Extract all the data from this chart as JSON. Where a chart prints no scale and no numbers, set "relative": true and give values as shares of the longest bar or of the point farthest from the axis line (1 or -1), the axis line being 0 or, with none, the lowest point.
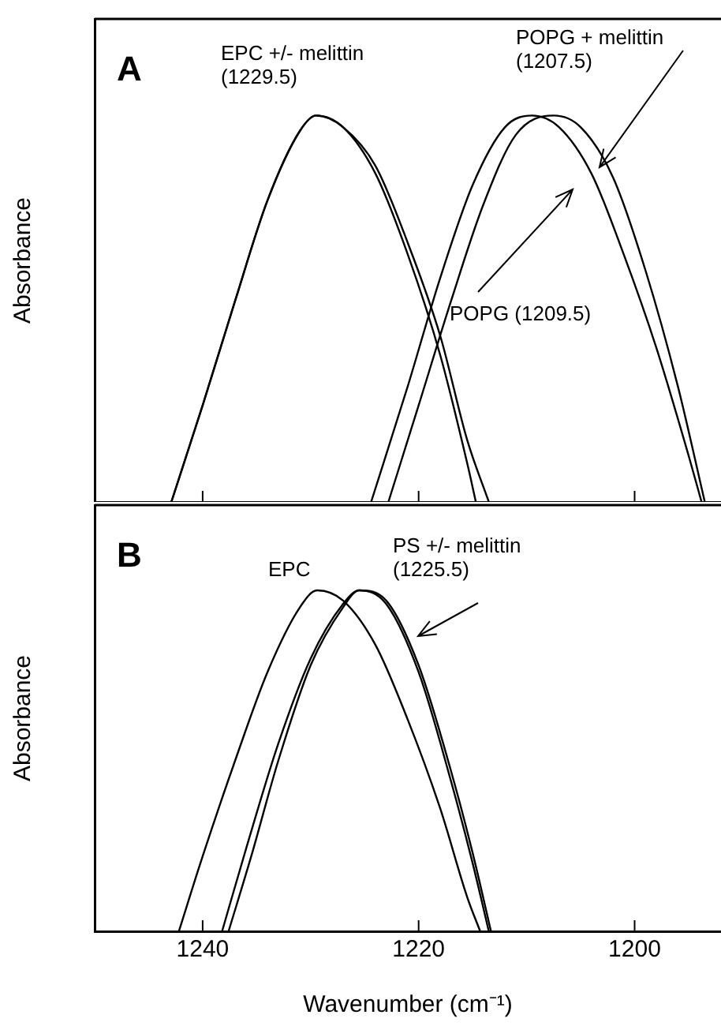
{
  "chart_data": [
    {
      "type": "line",
      "title": "A",
      "ylabel": "Absorbance",
      "relative": true,
      "xlim": [
        1250,
        1192
      ],
      "xticks": [
        {
          "value": 1240,
          "label": null
        },
        {
          "value": 1220,
          "label": null
        },
        {
          "value": 1200,
          "label": null
        }
      ],
      "tick_labels": false,
      "grid": false,
      "legend": false,
      "marker": "none",
      "line_style": "solid",
      "annotations": [
        "EPC +/- melittin\n(1229.5)",
        "POPG + melittin\n(1207.5)",
        "POPG (1209.5)"
      ],
      "series": [
        {
          "color": "#000000",
          "x": [
            1242.9,
            1240,
            1237,
            1234,
            1231,
            1229.5,
            1227,
            1224,
            1221,
            1218,
            1215.5,
            1214.7
          ],
          "values": [
            0,
            0.25,
            0.52,
            0.78,
            0.96,
            1,
            0.97,
            0.85,
            0.64,
            0.38,
            0.1,
            0
          ]
        },
        {
          "color": "#000000",
          "x": [
            1242.9,
            1240,
            1237,
            1234,
            1231,
            1229.5,
            1227,
            1224,
            1221,
            1218,
            1215.5,
            1213.5
          ],
          "values": [
            0,
            0.25,
            0.52,
            0.78,
            0.96,
            1,
            0.97,
            0.87,
            0.67,
            0.43,
            0.16,
            0
          ]
        },
        {
          "color": "#000000",
          "x": [
            1224.4,
            1221,
            1218,
            1215,
            1212,
            1209.5,
            1207,
            1204,
            1201,
            1198,
            1195,
            1193.8
          ],
          "values": [
            0,
            0.3,
            0.58,
            0.82,
            0.97,
            1,
            0.97,
            0.85,
            0.64,
            0.4,
            0.12,
            0
          ]
        },
        {
          "color": "#000000",
          "x": [
            1222.8,
            1220,
            1217,
            1214,
            1211,
            1207.5,
            1205,
            1202,
            1199,
            1196,
            1193.5
          ],
          "values": [
            0,
            0.25,
            0.52,
            0.77,
            0.95,
            1,
            0.97,
            0.84,
            0.6,
            0.3,
            0
          ]
        }
      ]
    },
    {
      "type": "line",
      "title": "B",
      "ylabel": "Absorbance",
      "xlabel": "Wavenumber (cm⁻¹)",
      "relative": true,
      "xlim": [
        1250,
        1192
      ],
      "xticks": [
        1240,
        1220,
        1200
      ],
      "tick_labels": "x",
      "grid": false,
      "legend": false,
      "marker": "none",
      "line_style": "solid",
      "annotations": [
        "EPC",
        "PS +/- melittin\n(1225.5)"
      ],
      "series": [
        {
          "color": "#000000",
          "x": [
            1242.2,
            1240,
            1237,
            1234,
            1231,
            1229.4,
            1227,
            1224,
            1221,
            1218,
            1215.5,
            1214.3
          ],
          "values": [
            0,
            0.22,
            0.5,
            0.76,
            0.95,
            1,
            0.97,
            0.84,
            0.62,
            0.36,
            0.1,
            0
          ]
        },
        {
          "color": "#000000",
          "x": [
            1238.2,
            1236,
            1233,
            1230,
            1227,
            1225.5,
            1223,
            1220,
            1217,
            1215,
            1213.5
          ],
          "values": [
            0,
            0.24,
            0.55,
            0.8,
            0.96,
            1,
            0.96,
            0.76,
            0.44,
            0.2,
            0
          ]
        },
        {
          "color": "#000000",
          "x": [
            1237.6,
            1235.5,
            1233,
            1230,
            1227,
            1225.5,
            1223,
            1220,
            1217,
            1215,
            1213.3
          ],
          "values": [
            0,
            0.22,
            0.5,
            0.78,
            0.95,
            1,
            0.97,
            0.78,
            0.47,
            0.23,
            0
          ]
        }
      ]
    }
  ]
}
